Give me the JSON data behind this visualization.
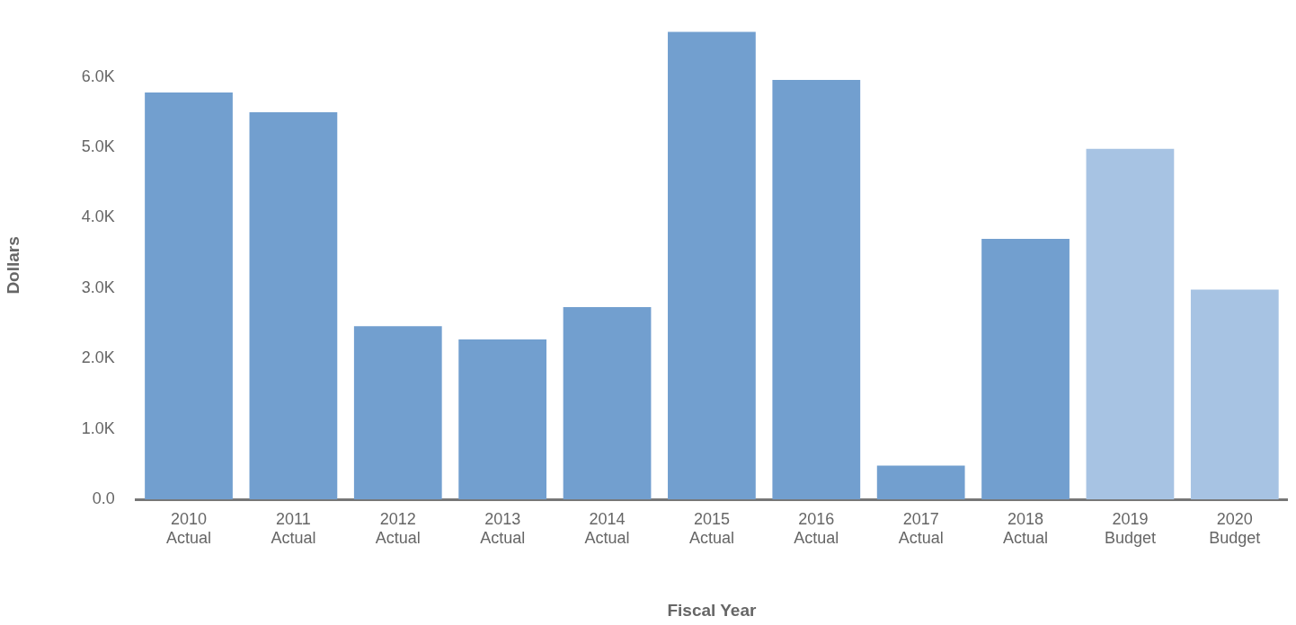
{
  "chart_data": {
    "type": "bar",
    "xlabel": "Fiscal Year",
    "ylabel": "Dollars",
    "categories": [
      "2010\nActual",
      "2011\nActual",
      "2012\nActual",
      "2013\nActual",
      "2014\nActual",
      "2015\nActual",
      "2016\nActual",
      "2017\nActual",
      "2018\nActual",
      "2019\nBudget",
      "2020\nBudget"
    ],
    "values": [
      5780,
      5500,
      2460,
      2270,
      2730,
      6640,
      5960,
      480,
      3700,
      4980,
      2980
    ],
    "colors": [
      "#729fcf",
      "#729fcf",
      "#729fcf",
      "#729fcf",
      "#729fcf",
      "#729fcf",
      "#729fcf",
      "#729fcf",
      "#729fcf",
      "#a7c3e3",
      "#a7c3e3"
    ],
    "ylim": [
      0,
      6650
    ],
    "yticks": [
      {
        "value": 0,
        "label": "0.0"
      },
      {
        "value": 1000,
        "label": "1.0K"
      },
      {
        "value": 2000,
        "label": "2.0K"
      },
      {
        "value": 3000,
        "label": "3.0K"
      },
      {
        "value": 4000,
        "label": "4.0K"
      },
      {
        "value": 5000,
        "label": "5.0K"
      },
      {
        "value": 6000,
        "label": "6.0K"
      }
    ],
    "grid": false,
    "legend": false
  }
}
